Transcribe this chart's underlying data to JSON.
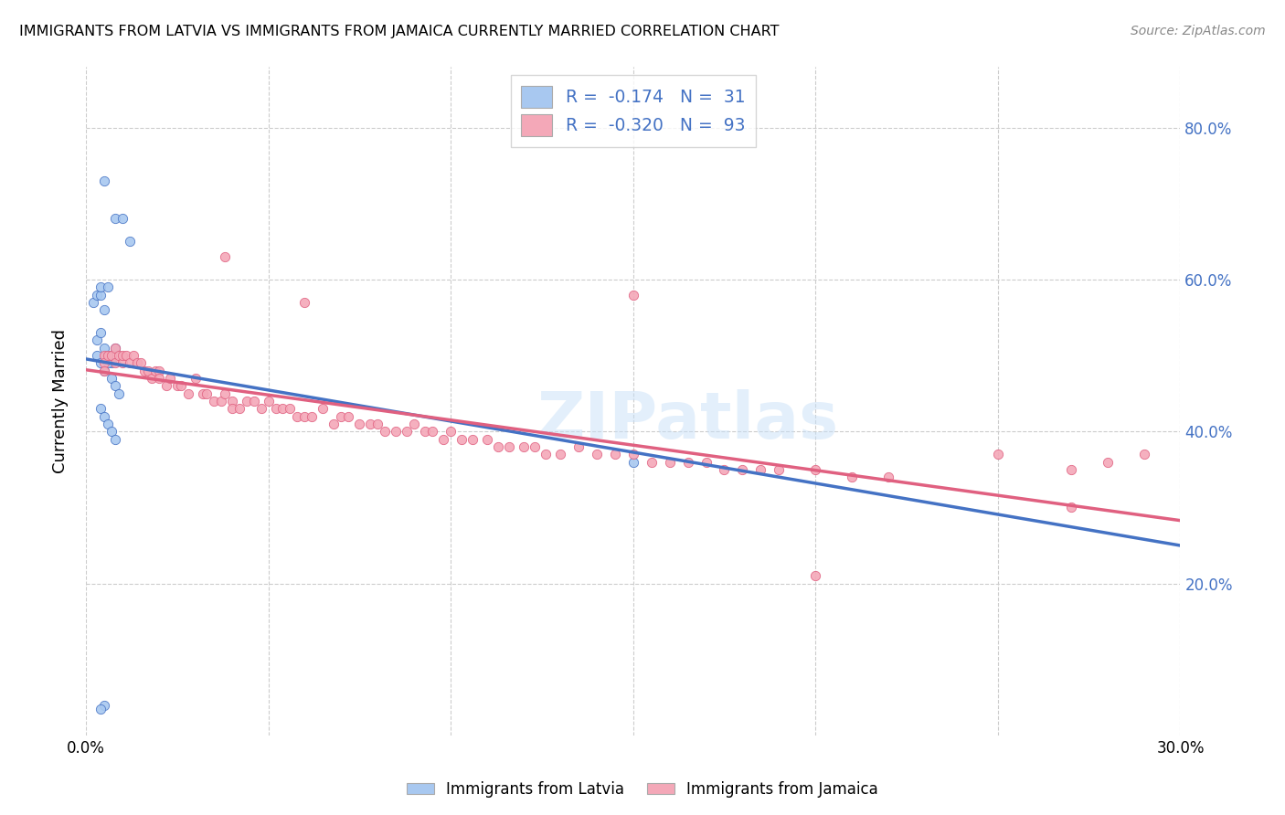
{
  "title": "IMMIGRANTS FROM LATVIA VS IMMIGRANTS FROM JAMAICA CURRENTLY MARRIED CORRELATION CHART",
  "source": "Source: ZipAtlas.com",
  "ylabel": "Currently Married",
  "xlim": [
    0.0,
    0.3
  ],
  "ylim": [
    0.0,
    0.88
  ],
  "legend_r_latvia": "-0.174",
  "legend_n_latvia": "31",
  "legend_r_jamaica": "-0.320",
  "legend_n_jamaica": "93",
  "color_latvia": "#a8c8f0",
  "color_jamaica": "#f4a8b8",
  "trendline_latvia_color": "#4472c4",
  "trendline_jamaica_color": "#e06080",
  "watermark": "ZIPatlas",
  "lv_x": [
    0.005,
    0.008,
    0.01,
    0.012,
    0.002,
    0.003,
    0.004,
    0.004,
    0.005,
    0.006,
    0.003,
    0.004,
    0.005,
    0.006,
    0.007,
    0.008,
    0.003,
    0.004,
    0.005,
    0.006,
    0.007,
    0.008,
    0.009,
    0.004,
    0.005,
    0.006,
    0.007,
    0.008,
    0.15,
    0.005,
    0.004
  ],
  "lv_y": [
    0.73,
    0.68,
    0.68,
    0.65,
    0.57,
    0.58,
    0.58,
    0.59,
    0.56,
    0.59,
    0.52,
    0.53,
    0.51,
    0.5,
    0.49,
    0.51,
    0.5,
    0.49,
    0.48,
    0.49,
    0.47,
    0.46,
    0.45,
    0.43,
    0.42,
    0.41,
    0.4,
    0.39,
    0.36,
    0.04,
    0.035
  ],
  "jm_x": [
    0.005,
    0.005,
    0.005,
    0.006,
    0.007,
    0.008,
    0.008,
    0.009,
    0.01,
    0.01,
    0.011,
    0.012,
    0.013,
    0.014,
    0.015,
    0.016,
    0.017,
    0.018,
    0.019,
    0.02,
    0.02,
    0.022,
    0.023,
    0.025,
    0.026,
    0.028,
    0.03,
    0.032,
    0.033,
    0.035,
    0.037,
    0.038,
    0.04,
    0.04,
    0.042,
    0.044,
    0.046,
    0.048,
    0.05,
    0.052,
    0.054,
    0.056,
    0.058,
    0.06,
    0.062,
    0.065,
    0.068,
    0.07,
    0.072,
    0.075,
    0.078,
    0.08,
    0.082,
    0.085,
    0.088,
    0.09,
    0.093,
    0.095,
    0.098,
    0.1,
    0.103,
    0.106,
    0.11,
    0.113,
    0.116,
    0.12,
    0.123,
    0.126,
    0.13,
    0.135,
    0.14,
    0.145,
    0.15,
    0.155,
    0.16,
    0.165,
    0.17,
    0.175,
    0.18,
    0.185,
    0.19,
    0.2,
    0.21,
    0.22,
    0.25,
    0.27,
    0.28,
    0.29,
    0.038,
    0.06,
    0.2,
    0.27,
    0.15
  ],
  "jm_y": [
    0.5,
    0.49,
    0.48,
    0.5,
    0.5,
    0.51,
    0.49,
    0.5,
    0.49,
    0.5,
    0.5,
    0.49,
    0.5,
    0.49,
    0.49,
    0.48,
    0.48,
    0.47,
    0.48,
    0.48,
    0.47,
    0.46,
    0.47,
    0.46,
    0.46,
    0.45,
    0.47,
    0.45,
    0.45,
    0.44,
    0.44,
    0.45,
    0.44,
    0.43,
    0.43,
    0.44,
    0.44,
    0.43,
    0.44,
    0.43,
    0.43,
    0.43,
    0.42,
    0.42,
    0.42,
    0.43,
    0.41,
    0.42,
    0.42,
    0.41,
    0.41,
    0.41,
    0.4,
    0.4,
    0.4,
    0.41,
    0.4,
    0.4,
    0.39,
    0.4,
    0.39,
    0.39,
    0.39,
    0.38,
    0.38,
    0.38,
    0.38,
    0.37,
    0.37,
    0.38,
    0.37,
    0.37,
    0.37,
    0.36,
    0.36,
    0.36,
    0.36,
    0.35,
    0.35,
    0.35,
    0.35,
    0.35,
    0.34,
    0.34,
    0.37,
    0.35,
    0.36,
    0.37,
    0.63,
    0.57,
    0.21,
    0.3,
    0.58
  ]
}
